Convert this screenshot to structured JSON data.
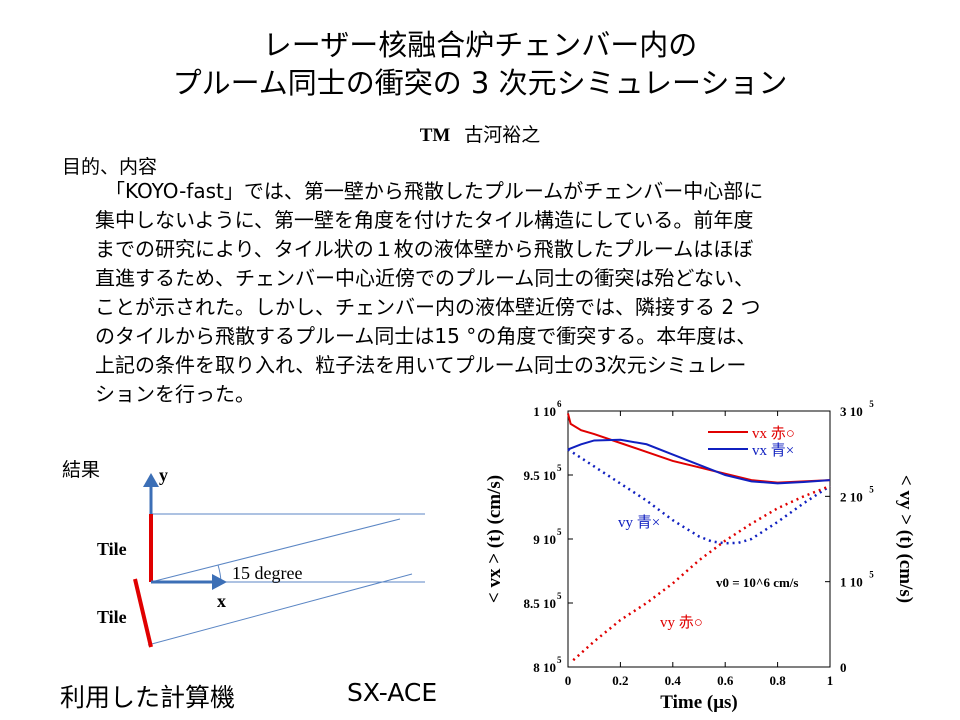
{
  "title": {
    "line1": "レーザー核融合炉チェンバー内の",
    "line2": "プルーム同士の衝突の 3 次元シミュレーション"
  },
  "author": {
    "affiliation": "TM",
    "name": "古河裕之"
  },
  "section_purpose": "目的、内容",
  "body_lines": [
    "　「KOYO-fast」では、第一壁から飛散したプルームがチェンバー中心部に",
    "集中しないように、第一壁を角度を付けたタイル構造にしている。前年度",
    "までの研究により、タイル状の１枚の液体壁から飛散したプルームはほぼ",
    "直進するため、チェンバー中心近傍でのプルーム同士の衝突は殆どない、",
    "ことが示された。しかし、チェンバー内の液体壁近傍では、隣接する 2 つ",
    "のタイルから飛散するプルーム同士は15 °の角度で衝突する。本年度は、",
    "上記の条件を取り入れ、粒子法を用いてプルーム同士の3次元シミュレー",
    "ションを行った。"
  ],
  "section_results": "結果",
  "diagram": {
    "y_label": "y",
    "x_label": "x",
    "tile_top": "Tile",
    "tile_bottom": "Tile",
    "angle_label": "15 degree"
  },
  "chart_data": {
    "type": "line",
    "xlabel": "Time (μs)",
    "ylabel_left": "< vx > (t) (cm/s)",
    "ylabel_right": "< vy > (t) (cm/s)",
    "xlim": [
      0,
      1
    ],
    "ylim_left": [
      800000,
      1000000
    ],
    "ylim_right": [
      0,
      300000
    ],
    "x_ticks": [
      "0",
      "0.2",
      "0.4",
      "0.6",
      "0.8",
      "1"
    ],
    "y_left_ticks": [
      "8 10",
      "8.5 10",
      "9 10",
      "9.5 10",
      "1 10"
    ],
    "y_left_tick_exp": [
      "5",
      "5",
      "5",
      "5",
      "6"
    ],
    "y_right_ticks": [
      "0",
      "1 10",
      "2 10",
      "3 10"
    ],
    "y_right_tick_exp": [
      "",
      "5",
      "5",
      "5"
    ],
    "annotation": "v0 = 10^6 cm/s",
    "legend": [
      {
        "label": "vx 赤○",
        "color": "#e00000"
      },
      {
        "label": "vx 青×",
        "color": "#1020c0"
      }
    ],
    "series": [
      {
        "name": "vx 赤○",
        "axis": "left",
        "color": "#e00000",
        "style": "solid",
        "x": [
          0,
          0.01,
          0.05,
          0.1,
          0.2,
          0.3,
          0.4,
          0.5,
          0.6,
          0.7,
          0.8,
          0.9,
          1.0
        ],
        "y": [
          998000,
          990000,
          985000,
          982000,
          975000,
          968000,
          961000,
          956000,
          951000,
          946000,
          944000,
          945000,
          946000
        ]
      },
      {
        "name": "vx 青×",
        "axis": "left",
        "color": "#1020c0",
        "style": "solid",
        "x": [
          0,
          0.05,
          0.1,
          0.2,
          0.3,
          0.4,
          0.5,
          0.6,
          0.7,
          0.8,
          0.9,
          1.0
        ],
        "y": [
          970000,
          974000,
          977000,
          977500,
          974000,
          966000,
          958000,
          950000,
          945000,
          943500,
          944500,
          946000
        ]
      },
      {
        "name": "vy 青×",
        "axis": "right",
        "color": "#1020c0",
        "style": "dotted",
        "x": [
          0,
          0.1,
          0.2,
          0.3,
          0.4,
          0.5,
          0.55,
          0.6,
          0.65,
          0.7,
          0.8,
          0.9,
          1.0
        ],
        "y": [
          255000,
          235000,
          215000,
          195000,
          172000,
          153000,
          147000,
          145000,
          145500,
          150000,
          170000,
          192000,
          212000
        ]
      },
      {
        "name": "vy 赤○",
        "axis": "right",
        "color": "#e00000",
        "style": "dotted",
        "x": [
          0.02,
          0.1,
          0.2,
          0.3,
          0.4,
          0.5,
          0.6,
          0.7,
          0.8,
          0.9,
          1.0
        ],
        "y": [
          8000,
          30000,
          55000,
          75000,
          98000,
          125000,
          148000,
          168000,
          186000,
          200000,
          212000
        ]
      }
    ],
    "inline_labels": [
      {
        "text": "vy 青×",
        "color": "#1020c0"
      },
      {
        "text": "vy 赤○",
        "color": "#e00000"
      }
    ]
  },
  "footer": {
    "label": "利用した計算機",
    "machine": "SX-ACE"
  }
}
